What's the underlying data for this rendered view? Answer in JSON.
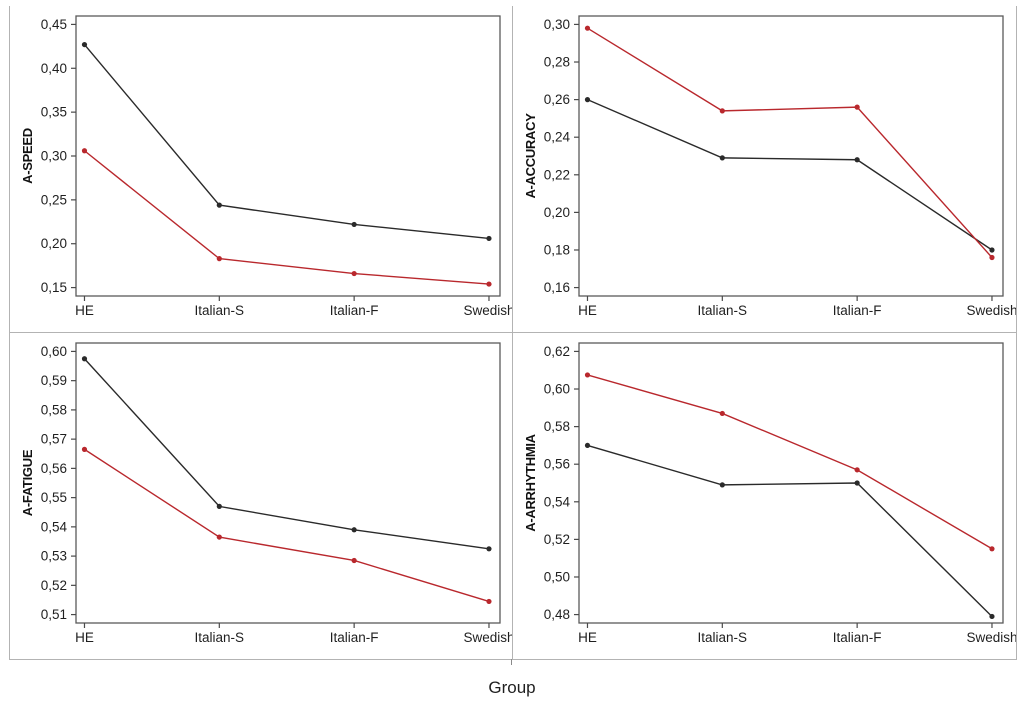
{
  "figure": {
    "xlabel": "Group"
  },
  "colors": {
    "series_black": "#2a2a2a",
    "series_red": "#b9282d",
    "frame": "#5a5a5a",
    "tick": "#4a4a4a",
    "tick_text": "#1f1f1f",
    "axis_title": "#111111",
    "divider": "#b3b3b3"
  },
  "chart_data": [
    {
      "type": "line",
      "ylabel": "A-SPEED",
      "categories": [
        "HE",
        "Italian-S",
        "Italian-F",
        "Swedish"
      ],
      "ytick_labels": [
        "0,15",
        "0,20",
        "0,25",
        "0,30",
        "0,35",
        "0,40",
        "0,45"
      ],
      "ylim": [
        0.15,
        0.45
      ],
      "grid": false,
      "legend": "none",
      "series": [
        {
          "name": "black",
          "color_key": "series_black",
          "values": [
            0.427,
            0.244,
            0.222,
            0.206
          ]
        },
        {
          "name": "red",
          "color_key": "series_red",
          "values": [
            0.306,
            0.183,
            0.166,
            0.154
          ]
        }
      ]
    },
    {
      "type": "line",
      "ylabel": "A-ACCURACY",
      "categories": [
        "HE",
        "Italian-S",
        "Italian-F",
        "Swedish"
      ],
      "ytick_labels": [
        "0,16",
        "0,18",
        "0,20",
        "0,22",
        "0,24",
        "0,26",
        "0,28",
        "0,30"
      ],
      "ylim": [
        0.16,
        0.3
      ],
      "grid": false,
      "legend": "none",
      "series": [
        {
          "name": "black",
          "color_key": "series_black",
          "values": [
            0.26,
            0.229,
            0.228,
            0.18
          ]
        },
        {
          "name": "red",
          "color_key": "series_red",
          "values": [
            0.298,
            0.254,
            0.256,
            0.176
          ]
        }
      ]
    },
    {
      "type": "line",
      "ylabel": "A-FATIGUE",
      "categories": [
        "HE",
        "Italian-S",
        "Italian-F",
        "Swedish"
      ],
      "ytick_labels": [
        "0,51",
        "0,52",
        "0,53",
        "0,54",
        "0,55",
        "0,56",
        "0,57",
        "0,58",
        "0,59",
        "0,60"
      ],
      "ylim": [
        0.51,
        0.6
      ],
      "grid": false,
      "legend": "none",
      "series": [
        {
          "name": "black",
          "color_key": "series_black",
          "values": [
            0.5975,
            0.547,
            0.539,
            0.5325
          ]
        },
        {
          "name": "red",
          "color_key": "series_red",
          "values": [
            0.5665,
            0.5365,
            0.5285,
            0.5145
          ]
        }
      ]
    },
    {
      "type": "line",
      "ylabel": "A-ARRHYTHMIA",
      "categories": [
        "HE",
        "Italian-S",
        "Italian-F",
        "Swedish"
      ],
      "ytick_labels": [
        "0,48",
        "0,50",
        "0,52",
        "0,54",
        "0,56",
        "0,58",
        "0,60",
        "0,62"
      ],
      "ylim": [
        0.48,
        0.62
      ],
      "grid": false,
      "legend": "none",
      "series": [
        {
          "name": "black",
          "color_key": "series_black",
          "values": [
            0.57,
            0.549,
            0.55,
            0.479
          ]
        },
        {
          "name": "red",
          "color_key": "series_red",
          "values": [
            0.6075,
            0.587,
            0.557,
            0.515
          ]
        }
      ]
    }
  ]
}
